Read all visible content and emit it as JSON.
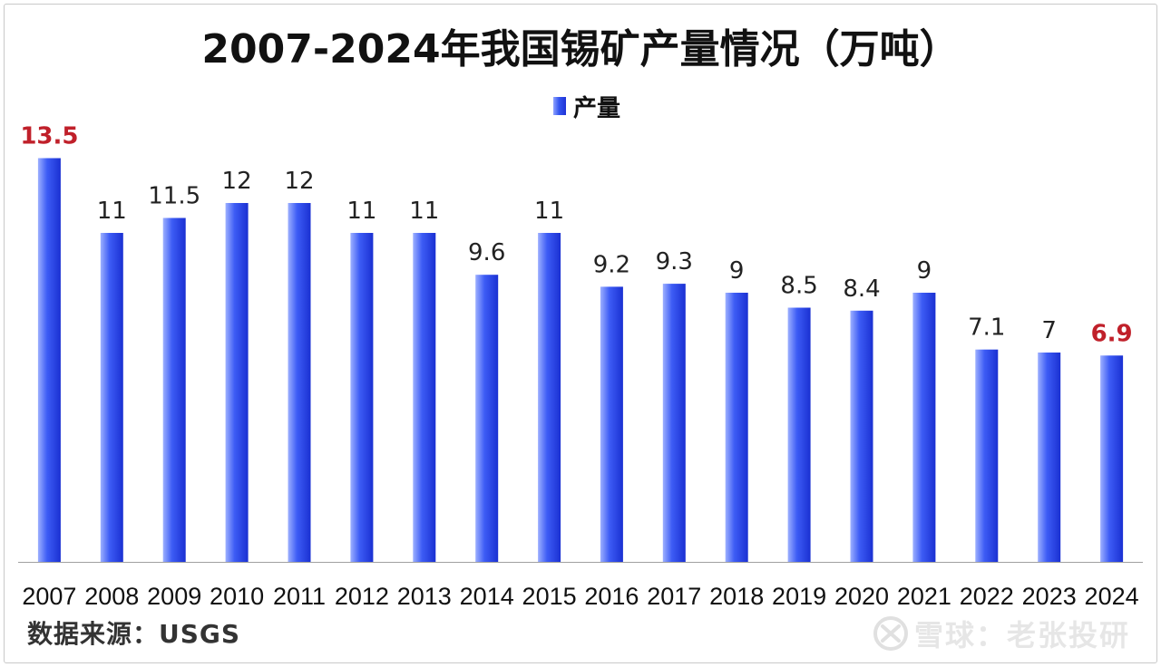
{
  "title": "2007-2024年我国锡矿产量情况（万吨）",
  "source_note": "数据来源：USGS",
  "watermark": {
    "icon": "xueqiu-logo-icon",
    "text": "雪球：老张投研"
  },
  "colors": {
    "bar": "#2f4ff0",
    "bar_light": "#8fa3ff",
    "label": "#222222",
    "highlight_label": "#c0202a",
    "axis": "#a0a0a0"
  },
  "chart_data": {
    "type": "bar",
    "title": "2007-2024年我国锡矿产量情况（万吨）",
    "categories": [
      "2007",
      "2008",
      "2009",
      "2010",
      "2011",
      "2012",
      "2013",
      "2014",
      "2015",
      "2016",
      "2017",
      "2018",
      "2019",
      "2020",
      "2021",
      "2022",
      "2023",
      "2024"
    ],
    "series": [
      {
        "name": "产量",
        "values": [
          13.5,
          11,
          11.5,
          12,
          12,
          11,
          11,
          9.6,
          11,
          9.2,
          9.3,
          9,
          8.5,
          8.4,
          9,
          7.1,
          7,
          6.9
        ],
        "value_labels": [
          "13.5",
          "11",
          "11.5",
          "12",
          "12",
          "11",
          "11",
          "9.6",
          "11",
          "9.2",
          "9.3",
          "9",
          "8.5",
          "8.4",
          "9",
          "7.1",
          "7",
          "6.9"
        ]
      }
    ],
    "highlighted_labels": [
      "2007",
      "2024"
    ],
    "xlabel": "",
    "ylabel": "",
    "ylim": [
      0,
      14
    ],
    "y_axis_visible": false,
    "grid": false,
    "legend_position": "top-center"
  }
}
